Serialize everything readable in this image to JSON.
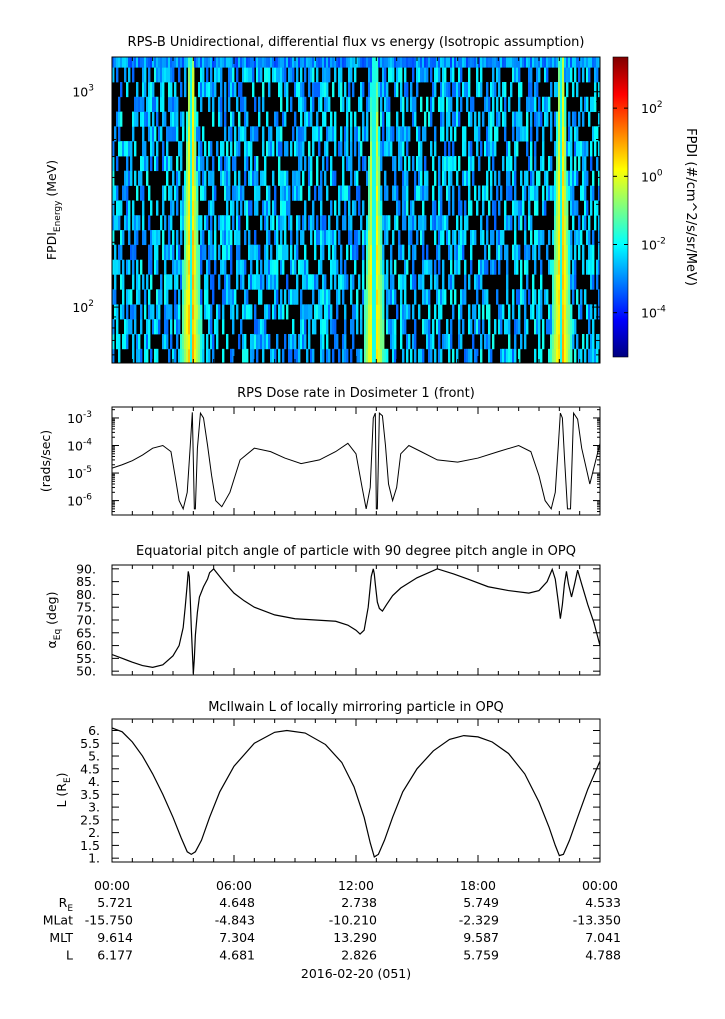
{
  "date_label": "2016-02-20 (051)",
  "ephemeris": {
    "rows": [
      {
        "label": "R",
        "sub": "E",
        "values": [
          "5.721",
          "4.648",
          "2.738",
          "5.749",
          "4.533"
        ]
      },
      {
        "label": "MLat",
        "sub": "",
        "values": [
          "-15.750",
          "-4.843",
          "-10.210",
          "-2.329",
          "-13.350"
        ]
      },
      {
        "label": "MLT",
        "sub": "",
        "values": [
          "9.614",
          "7.304",
          "13.290",
          "9.587",
          "7.041"
        ]
      },
      {
        "label": "L",
        "sub": "",
        "values": [
          "6.177",
          "4.681",
          "2.826",
          "5.759",
          "4.788"
        ]
      }
    ]
  },
  "chart_data": [
    {
      "type": "heatmap",
      "title": "RPS-B  Unidirectional, differential flux vs energy (Isotropic assumption)",
      "ylabel": {
        "main": "FPDI",
        "sub": "Energy",
        "unit": " (MeV)"
      },
      "yscale": "log",
      "ylim": [
        55,
        1450
      ],
      "yticks": [
        {
          "value": 100,
          "base": "10",
          "exp": "2"
        },
        {
          "value": 1000,
          "base": "10",
          "exp": "3"
        }
      ],
      "x_hours_range": [
        0,
        24
      ],
      "energy_bin_edges": [
        55,
        64,
        75,
        88,
        103,
        121,
        142,
        166,
        195,
        228,
        267,
        313,
        367,
        430,
        503,
        590,
        691,
        809,
        948,
        1110,
        1300,
        1450
      ],
      "perigee_passes_hours": [
        3.9,
        12.9,
        22.1
      ],
      "colorbar": {
        "label": "FPDI (#/cm^2/s/sr/MeV)",
        "scale": "log",
        "range_log10": [
          -5.3,
          3.5
        ],
        "ticks": [
          {
            "base": "10",
            "exp": "-4",
            "log": -4
          },
          {
            "base": "10",
            "exp": "-2",
            "log": -2
          },
          {
            "base": "10",
            "exp": "0",
            "log": 0
          },
          {
            "base": "10",
            "exp": "2",
            "log": 2
          }
        ],
        "colors": [
          "#00007f",
          "#0000ff",
          "#007fff",
          "#00ffff",
          "#7fff7f",
          "#ffff00",
          "#ff7f00",
          "#ff0000",
          "#7f0000"
        ]
      },
      "background": "#000000"
    },
    {
      "type": "line",
      "title": "RPS  Dose rate in Dosimeter 1 (front)",
      "ylabel": "(rads/sec)",
      "yscale": "log",
      "ylim": [
        3e-07,
        0.0025
      ],
      "yticks": [
        {
          "value": 1e-06,
          "base": "10",
          "exp": "-6"
        },
        {
          "value": 1e-05,
          "base": "10",
          "exp": "-5"
        },
        {
          "value": 0.0001,
          "base": "10",
          "exp": "-4"
        },
        {
          "value": 0.001,
          "base": "10",
          "exp": "-3"
        }
      ],
      "x_hours": [
        0,
        0.5,
        1,
        1.5,
        2,
        2.5,
        2.9,
        3.1,
        3.3,
        3.5,
        3.7,
        3.85,
        3.95,
        4.0,
        4.05,
        4.1,
        4.2,
        4.35,
        4.5,
        4.7,
        4.9,
        5.1,
        5.4,
        5.8,
        6.3,
        7,
        7.8,
        8.5,
        9.3,
        10.2,
        11,
        11.6,
        12.0,
        12.3,
        12.5,
        12.7,
        12.85,
        12.95,
        13.0,
        13.05,
        13.15,
        13.3,
        13.45,
        13.6,
        13.8,
        14.0,
        14.2,
        14.6,
        15.2,
        16,
        17,
        18,
        19,
        20,
        20.6,
        21.0,
        21.3,
        21.6,
        21.8,
        21.95,
        22.05,
        22.15,
        22.25,
        22.4,
        22.55,
        22.7,
        22.9,
        23.1,
        23.5,
        24
      ],
      "y": [
        1.5e-05,
        2e-05,
        2.8e-05,
        4.5e-05,
        8e-05,
        0.0001,
        6e-05,
        8e-06,
        1e-06,
        5e-07,
        2e-06,
        0.0001,
        0.0016,
        3e-05,
        5e-07,
        5e-07,
        8e-05,
        0.0015,
        0.001,
        0.0001,
        8e-06,
        1e-06,
        6e-07,
        2e-06,
        3e-05,
        8e-05,
        6e-05,
        3.5e-05,
        2.2e-05,
        3e-05,
        6e-05,
        0.00012,
        5e-05,
        3e-06,
        5e-07,
        3e-06,
        0.001,
        0.0015,
        5e-07,
        5e-07,
        0.0015,
        0.0012,
        0.0001,
        4e-06,
        1e-06,
        3e-06,
        5e-05,
        0.0001,
        6e-05,
        3e-05,
        2.5e-05,
        3.5e-05,
        6e-05,
        0.0001,
        6e-05,
        8e-06,
        1e-06,
        5e-07,
        2e-06,
        0.0001,
        0.0015,
        0.001,
        4e-05,
        5e-07,
        5e-07,
        0.0015,
        0.0009,
        8e-05,
        4e-06,
        0.00012
      ]
    },
    {
      "type": "line",
      "title": "Equatorial pitch angle of particle with 90 degree pitch angle in OPQ",
      "ylabel": {
        "main": "α",
        "sub": "Eq",
        "unit": " (deg)"
      },
      "ylim": [
        48.5,
        91.5
      ],
      "yticks": [
        50,
        55,
        60,
        65,
        70,
        75,
        80,
        85,
        90
      ],
      "x_hours": [
        0,
        0.5,
        1,
        1.5,
        2,
        2.5,
        3,
        3.3,
        3.5,
        3.6,
        3.7,
        3.75,
        3.8,
        3.85,
        3.9,
        3.95,
        4.0,
        4.05,
        4.1,
        4.2,
        4.3,
        4.5,
        4.7,
        4.8,
        5.0,
        5.2,
        5.5,
        6,
        6.5,
        7,
        7.5,
        8,
        9,
        10,
        11,
        11.6,
        12.0,
        12.2,
        12.4,
        12.6,
        12.75,
        12.85,
        12.9,
        12.95,
        13.05,
        13.15,
        13.3,
        13.5,
        13.8,
        14.2,
        15,
        16,
        16.8,
        17.5,
        18.5,
        19.5,
        20.5,
        21.0,
        21.4,
        21.65,
        21.8,
        21.95,
        22.05,
        22.15,
        22.25,
        22.35,
        22.45,
        22.6,
        22.75,
        22.9,
        23.1,
        23.4,
        23.7,
        24
      ],
      "y": [
        56.5,
        55,
        53.5,
        52.2,
        51.5,
        52.5,
        56,
        60,
        67,
        75,
        84,
        89,
        87,
        78,
        67,
        58,
        49,
        55,
        64,
        73,
        79,
        83,
        86,
        88.5,
        90,
        88,
        85,
        80.5,
        77.5,
        75,
        73.5,
        72,
        70.5,
        70,
        69.5,
        68,
        66,
        64.5,
        66,
        75,
        87,
        90,
        88,
        84,
        77,
        74.5,
        73.5,
        76,
        79.5,
        82.5,
        86.5,
        90,
        88,
        86,
        83,
        81.5,
        80.5,
        81.5,
        85,
        89.8,
        86,
        77,
        70.5,
        76,
        84,
        89,
        84,
        79,
        84,
        89.5,
        84,
        76,
        69,
        60
      ]
    },
    {
      "type": "line",
      "title": "McIlwain L of locally mirroring particle in OPQ",
      "ylabel": {
        "main": "L (R",
        "sub": "E",
        "unit": ")"
      },
      "ylim": [
        0.85,
        6.45
      ],
      "yticks": [
        1,
        1.5,
        2,
        2.5,
        3,
        3.5,
        4,
        4.5,
        5,
        5.5,
        6
      ],
      "yticklabels": [
        "1.",
        "1.5",
        "2.",
        "2.5",
        "3.",
        "3.5",
        "4.",
        "4.5",
        "5.",
        "5.5",
        "6."
      ],
      "x_hours": [
        0,
        0.5,
        1,
        1.5,
        2,
        2.5,
        3,
        3.4,
        3.7,
        3.9,
        4.1,
        4.4,
        4.8,
        5.3,
        6,
        7,
        8,
        8.6,
        9.5,
        10.5,
        11.3,
        11.9,
        12.4,
        12.7,
        12.9,
        13.1,
        13.4,
        13.8,
        14.3,
        15,
        15.8,
        16.6,
        17.3,
        18,
        18.7,
        19.5,
        20.3,
        21,
        21.5,
        21.8,
        22.0,
        22.2,
        22.5,
        22.9,
        23.4,
        24
      ],
      "y": [
        6.1,
        5.95,
        5.55,
        5.0,
        4.3,
        3.5,
        2.6,
        1.8,
        1.25,
        1.15,
        1.25,
        1.7,
        2.6,
        3.6,
        4.6,
        5.5,
        5.93,
        6.0,
        5.9,
        5.45,
        4.75,
        3.8,
        2.6,
        1.6,
        1.05,
        1.15,
        1.7,
        2.6,
        3.6,
        4.5,
        5.2,
        5.65,
        5.8,
        5.75,
        5.55,
        5.1,
        4.3,
        3.2,
        2.2,
        1.5,
        1.1,
        1.15,
        1.7,
        2.6,
        3.7,
        4.8
      ]
    }
  ],
  "x_axis": {
    "ticklabels": [
      "00:00",
      "06:00",
      "12:00",
      "18:00",
      "00:00"
    ]
  }
}
